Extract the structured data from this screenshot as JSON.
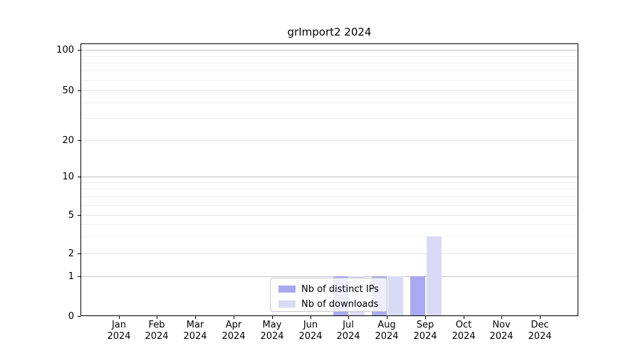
{
  "figure": {
    "background": "#ffffff"
  },
  "chart_data": {
    "type": "bar",
    "title": "grImport2 2024",
    "categories": [
      "Jan",
      "Feb",
      "Mar",
      "Apr",
      "May",
      "Jun",
      "Jul",
      "Aug",
      "Sep",
      "Oct",
      "Nov",
      "Dec"
    ],
    "x_year_label": "2024",
    "series": [
      {
        "name": "Nb of distinct IPs",
        "color": "#a9a9f1",
        "values": [
          0,
          0,
          0,
          0,
          0,
          0,
          1,
          1,
          1,
          0,
          0,
          0
        ]
      },
      {
        "name": "Nb of downloads",
        "color": "#dadaf7",
        "values": [
          0,
          0,
          0,
          0,
          0,
          0,
          1,
          1,
          3,
          0,
          0,
          0
        ]
      }
    ],
    "xlabel": "",
    "ylabel": "",
    "y_axis": {
      "scale": "log-like",
      "range": [
        0,
        100
      ],
      "major_ticks": [
        0,
        1,
        2,
        5,
        10,
        20,
        50,
        100
      ],
      "minor_ticks": [
        3,
        4,
        6,
        7,
        8,
        9,
        30,
        40,
        60,
        70,
        80,
        90
      ],
      "decade_ticks": [
        1,
        10,
        100
      ]
    },
    "grid": {
      "enabled": true,
      "decade_color": "#c4c4c4",
      "submajor_color": "#e4e4e4",
      "minor_color": "#f1f1f1"
    },
    "legend": {
      "position": "inside-bottom-center",
      "entries": [
        "Nb of distinct IPs",
        "Nb of downloads"
      ]
    }
  }
}
